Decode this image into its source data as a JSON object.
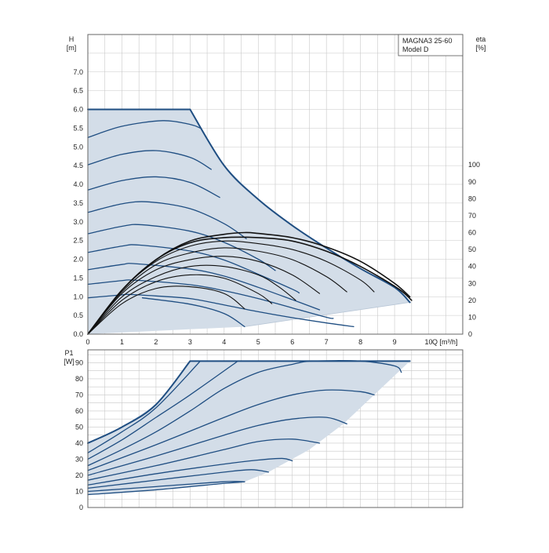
{
  "colors": {
    "background": "#ffffff",
    "grid": "#c8c8c8",
    "frame": "#666666",
    "envelope_fill": "#d3dde8",
    "pump_curve": "#1f4e82",
    "efficiency_curve": "#111111"
  },
  "chart_data": [
    {
      "type": "line",
      "legend": {
        "line1": "MAGNA3 25-60",
        "line2": "Model D",
        "placement": "top-right"
      },
      "xlabel": "Q [m³/h]",
      "x_ticks": [
        "0",
        "1",
        "2",
        "3",
        "4",
        "5",
        "6",
        "7",
        "8",
        "9",
        "10"
      ],
      "xlim": [
        0,
        11
      ],
      "ylabel_line1": "H",
      "ylabel_line2": "[m]",
      "y_ticks": [
        "0.0",
        "0.5",
        "1.0",
        "1.5",
        "2.0",
        "2.5",
        "3.0",
        "3.5",
        "4.0",
        "4.5",
        "5.0",
        "5.5",
        "6.0",
        "6.5",
        "7.0"
      ],
      "ylim": [
        0,
        8
      ],
      "y2label_line1": "eta",
      "y2label_line2": "[%]",
      "y2_ticks": [
        "0",
        "10",
        "20",
        "30",
        "40",
        "50",
        "60",
        "70",
        "80",
        "90",
        "100"
      ],
      "y2_values": [
        0,
        10,
        20,
        30,
        40,
        50,
        60,
        70,
        80,
        90,
        100
      ],
      "y2lim": [
        0,
        177
      ],
      "grid": true,
      "operating_envelope": [
        [
          0,
          6.0
        ],
        [
          3.0,
          6.0
        ],
        [
          4.0,
          4.5
        ],
        [
          5.0,
          3.6
        ],
        [
          6.0,
          2.9
        ],
        [
          7.0,
          2.3
        ],
        [
          8.0,
          1.75
        ],
        [
          9.0,
          1.25
        ],
        [
          9.45,
          0.85
        ],
        [
          4.6,
          0.2
        ],
        [
          0,
          0
        ]
      ],
      "pump_curves": [
        {
          "points": [
            [
              0,
              6.0
            ],
            [
              3.0,
              6.0
            ],
            [
              4.0,
              4.5
            ],
            [
              5.0,
              3.6
            ],
            [
              6.0,
              2.9
            ],
            [
              7.0,
              2.3
            ],
            [
              8.0,
              1.75
            ],
            [
              9.0,
              1.25
            ],
            [
              9.45,
              0.85
            ]
          ]
        },
        {
          "points": [
            [
              0,
              5.25
            ],
            [
              1.0,
              5.55
            ],
            [
              2.2,
              5.7
            ],
            [
              3.0,
              5.6
            ],
            [
              3.3,
              5.5
            ]
          ]
        },
        {
          "points": [
            [
              0,
              4.52
            ],
            [
              1.0,
              4.8
            ],
            [
              2.0,
              4.9
            ],
            [
              3.0,
              4.72
            ],
            [
              3.62,
              4.4
            ]
          ]
        },
        {
          "points": [
            [
              0,
              3.85
            ],
            [
              1.0,
              4.1
            ],
            [
              2.0,
              4.2
            ],
            [
              3.0,
              4.05
            ],
            [
              3.87,
              3.65
            ]
          ]
        },
        {
          "points": [
            [
              0,
              3.25
            ],
            [
              1.0,
              3.48
            ],
            [
              1.8,
              3.53
            ],
            [
              3.0,
              3.35
            ],
            [
              4.0,
              2.95
            ],
            [
              4.65,
              2.55
            ]
          ]
        },
        {
          "points": [
            [
              0,
              2.68
            ],
            [
              1.0,
              2.88
            ],
            [
              1.6,
              2.92
            ],
            [
              3.0,
              2.75
            ],
            [
              4.0,
              2.45
            ],
            [
              5.0,
              2.0
            ],
            [
              5.5,
              1.7
            ]
          ]
        },
        {
          "points": [
            [
              0,
              2.18
            ],
            [
              1.0,
              2.35
            ],
            [
              1.5,
              2.38
            ],
            [
              3.0,
              2.22
            ],
            [
              4.0,
              1.98
            ],
            [
              5.0,
              1.6
            ],
            [
              6.0,
              1.2
            ],
            [
              6.2,
              1.1
            ]
          ]
        },
        {
          "points": [
            [
              0,
              1.72
            ],
            [
              1.0,
              1.86
            ],
            [
              1.4,
              1.88
            ],
            [
              3.0,
              1.74
            ],
            [
              4.0,
              1.55
            ],
            [
              5.0,
              1.25
            ],
            [
              6.0,
              0.92
            ],
            [
              6.8,
              0.65
            ]
          ]
        },
        {
          "points": [
            [
              0,
              1.33
            ],
            [
              1.0,
              1.43
            ],
            [
              1.4,
              1.44
            ],
            [
              3.0,
              1.32
            ],
            [
              4.0,
              1.16
            ],
            [
              5.0,
              0.95
            ],
            [
              6.0,
              0.7
            ],
            [
              7.0,
              0.45
            ],
            [
              7.2,
              0.42
            ]
          ]
        },
        {
          "points": [
            [
              0,
              0.97
            ],
            [
              1.0,
              1.05
            ],
            [
              1.2,
              1.06
            ],
            [
              2.0,
              1.02
            ],
            [
              3.0,
              0.95
            ],
            [
              4.0,
              0.78
            ],
            [
              5.0,
              0.6
            ],
            [
              6.0,
              0.44
            ],
            [
              7.0,
              0.3
            ],
            [
              7.8,
              0.2
            ]
          ]
        },
        {
          "points": [
            [
              1.6,
              0.97
            ],
            [
              3.0,
              0.8
            ],
            [
              4.0,
              0.55
            ],
            [
              4.6,
              0.2
            ]
          ]
        }
      ],
      "efficiency_curves": [
        {
          "eta_points": [
            [
              0,
              0
            ],
            [
              1.0,
              26
            ],
            [
              2.0,
              44
            ],
            [
              3.0,
              55
            ],
            [
              4.0,
              59
            ],
            [
              4.6,
              60
            ],
            [
              5.0,
              59.5
            ],
            [
              6.0,
              57
            ],
            [
              7.0,
              51.5
            ],
            [
              8.0,
              43
            ],
            [
              9.0,
              30
            ],
            [
              9.45,
              22
            ]
          ]
        },
        {
          "eta_points": [
            [
              0,
              0
            ],
            [
              1.0,
              26
            ],
            [
              2.0,
              44
            ],
            [
              3.0,
              54
            ],
            [
              4.0,
              57
            ],
            [
              5.0,
              57
            ],
            [
              6.0,
              55
            ],
            [
              7.0,
              49
            ],
            [
              8.0,
              40
            ],
            [
              9.1,
              27
            ],
            [
              9.5,
              20
            ]
          ]
        },
        {
          "eta_points": [
            [
              0,
              0
            ],
            [
              1.0,
              26
            ],
            [
              2.0,
              43
            ],
            [
              3.0,
              52
            ],
            [
              4.0,
              55
            ],
            [
              5.0,
              53.5
            ],
            [
              6.0,
              50
            ],
            [
              7.0,
              43
            ],
            [
              8.0,
              32
            ],
            [
              8.4,
              25
            ]
          ]
        },
        {
          "eta_points": [
            [
              0,
              0
            ],
            [
              1.0,
              25
            ],
            [
              2.0,
              41
            ],
            [
              3.0,
              48
            ],
            [
              4.0,
              51
            ],
            [
              5.0,
              49
            ],
            [
              6.0,
              44
            ],
            [
              7.0,
              34
            ],
            [
              7.6,
              25
            ]
          ]
        },
        {
          "eta_points": [
            [
              0,
              0
            ],
            [
              1.0,
              24
            ],
            [
              2.0,
              38
            ],
            [
              3.0,
              44
            ],
            [
              4.0,
              46
            ],
            [
              5.0,
              43
            ],
            [
              6.0,
              35
            ],
            [
              6.8,
              24
            ]
          ]
        },
        {
          "eta_points": [
            [
              0,
              0
            ],
            [
              1.0,
              22
            ],
            [
              2.0,
              34
            ],
            [
              3.0,
              40
            ],
            [
              4.0,
              40
            ],
            [
              5.0,
              35
            ],
            [
              5.6,
              28
            ],
            [
              6.1,
              20
            ]
          ]
        },
        {
          "eta_points": [
            [
              0,
              0
            ],
            [
              1.0,
              20
            ],
            [
              2.0,
              31
            ],
            [
              3.0,
              35
            ],
            [
              4.0,
              33
            ],
            [
              5.0,
              24
            ],
            [
              5.4,
              18
            ]
          ]
        },
        {
          "eta_points": [
            [
              0,
              0
            ],
            [
              1.0,
              18
            ],
            [
              2.0,
              27
            ],
            [
              3.0,
              28
            ],
            [
              4.0,
              24
            ],
            [
              4.6,
              15
            ]
          ]
        }
      ]
    },
    {
      "type": "line",
      "ylabel_line1": "P1",
      "ylabel_line2": "[W]",
      "y_ticks": [
        "0",
        "10",
        "20",
        "30",
        "40",
        "50",
        "60",
        "70",
        "80",
        "90"
      ],
      "ylim": [
        0,
        98
      ],
      "xlim": [
        0,
        11
      ],
      "grid": true,
      "operating_envelope": [
        [
          0,
          40
        ],
        [
          1.0,
          50
        ],
        [
          2.0,
          64
        ],
        [
          3.0,
          91
        ],
        [
          9.45,
          91
        ],
        [
          8.5,
          72
        ],
        [
          7.5,
          52
        ],
        [
          6.5,
          36
        ],
        [
          5.3,
          22
        ],
        [
          4.6,
          16
        ],
        [
          0,
          8
        ]
      ],
      "power_curves": [
        {
          "points": [
            [
              0,
              40
            ],
            [
              1.0,
              50
            ],
            [
              2.0,
              64
            ],
            [
              3.0,
              91
            ],
            [
              9.45,
              91
            ]
          ]
        },
        {
          "points": [
            [
              0,
              34
            ],
            [
              1.0,
              47
            ],
            [
              2.0,
              62
            ],
            [
              3.3,
              91
            ]
          ]
        },
        {
          "points": [
            [
              0,
              30
            ],
            [
              1.0,
              42
            ],
            [
              2.0,
              56
            ],
            [
              3.0,
              70
            ],
            [
              4.4,
              91
            ]
          ]
        },
        {
          "points": [
            [
              0,
              26
            ],
            [
              1.0,
              36
            ],
            [
              2.0,
              47
            ],
            [
              3.0,
              60
            ],
            [
              4.0,
              74
            ],
            [
              5.0,
              84
            ],
            [
              6.0,
              89
            ],
            [
              6.6,
              91
            ],
            [
              8.0,
              91
            ],
            [
              9.0,
              88
            ],
            [
              9.2,
              84
            ]
          ]
        },
        {
          "points": [
            [
              0,
              23
            ],
            [
              2.0,
              39
            ],
            [
              4.0,
              56
            ],
            [
              5.0,
              64
            ],
            [
              6.0,
              70
            ],
            [
              7.0,
              73
            ],
            [
              8.0,
              72
            ],
            [
              8.4,
              70
            ]
          ]
        },
        {
          "points": [
            [
              0,
              20
            ],
            [
              2.0,
              32
            ],
            [
              4.0,
              45
            ],
            [
              5.0,
              51
            ],
            [
              6.0,
              55
            ],
            [
              7.0,
              56
            ],
            [
              7.6,
              52
            ]
          ]
        },
        {
          "points": [
            [
              0,
              17
            ],
            [
              2.0,
              26
            ],
            [
              4.0,
              36
            ],
            [
              5.0,
              41
            ],
            [
              6.0,
              42.5
            ],
            [
              6.8,
              40
            ]
          ]
        },
        {
          "points": [
            [
              0,
              14
            ],
            [
              2.0,
              21
            ],
            [
              4.0,
              27
            ],
            [
              5.0,
              29.5
            ],
            [
              5.7,
              30.5
            ],
            [
              6.0,
              29
            ]
          ]
        },
        {
          "points": [
            [
              0,
              12
            ],
            [
              2.0,
              17
            ],
            [
              4.0,
              22
            ],
            [
              4.8,
              23.5
            ],
            [
              5.3,
              22
            ]
          ]
        },
        {
          "points": [
            [
              0,
              10
            ],
            [
              2.0,
              13
            ],
            [
              4.0,
              16
            ],
            [
              4.6,
              16
            ]
          ]
        },
        {
          "points": [
            [
              0,
              8
            ],
            [
              2.0,
              11
            ],
            [
              4.0,
              15
            ],
            [
              4.6,
              16
            ]
          ]
        }
      ]
    }
  ]
}
